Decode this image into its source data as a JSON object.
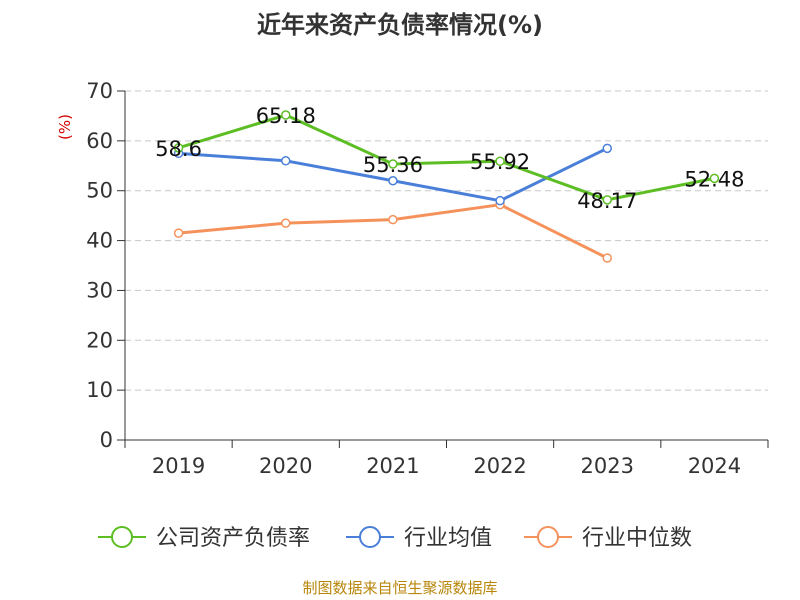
{
  "chart_data": {
    "type": "line",
    "title": "近年来资产负债率情况(%)",
    "ylabel": "(%)",
    "categories": [
      "2019",
      "2020",
      "2021",
      "2022",
      "2023",
      "2024"
    ],
    "ylim": [
      0,
      70
    ],
    "yticks": [
      "0",
      "10",
      "20",
      "30",
      "40",
      "50",
      "60",
      "70"
    ],
    "grid": true,
    "legend_position": "bottom",
    "series": [
      {
        "name": "公司资产负债率",
        "color": "#5dbe24",
        "values": [
          58.6,
          65.18,
          55.36,
          55.92,
          48.17,
          52.48
        ],
        "labels": [
          "58.6",
          "65.18",
          "55.36",
          "55.92",
          "48.17",
          "52.48"
        ]
      },
      {
        "name": "行业均值",
        "color": "#4a7fd9",
        "values": [
          57.5,
          56.0,
          52.0,
          48.0,
          58.5,
          null
        ]
      },
      {
        "name": "行业中位数",
        "color": "#f5925c",
        "values": [
          41.5,
          43.5,
          44.2,
          47.2,
          36.5,
          null
        ]
      }
    ],
    "source": "制图数据来自恒生聚源数据库"
  }
}
